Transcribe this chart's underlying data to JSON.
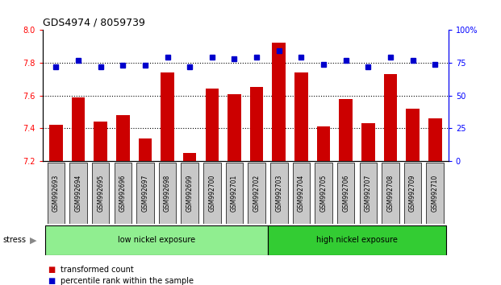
{
  "title": "GDS4974 / 8059739",
  "categories": [
    "GSM992693",
    "GSM992694",
    "GSM992695",
    "GSM992696",
    "GSM992697",
    "GSM992698",
    "GSM992699",
    "GSM992700",
    "GSM992701",
    "GSM992702",
    "GSM992703",
    "GSM992704",
    "GSM992705",
    "GSM992706",
    "GSM992707",
    "GSM992708",
    "GSM992709",
    "GSM992710"
  ],
  "bar_values": [
    7.42,
    7.59,
    7.44,
    7.48,
    7.34,
    7.74,
    7.25,
    7.64,
    7.61,
    7.65,
    7.92,
    7.74,
    7.41,
    7.58,
    7.43,
    7.73,
    7.52,
    7.46
  ],
  "dot_values": [
    72,
    77,
    72,
    73,
    73,
    79,
    72,
    79,
    78,
    79,
    84,
    79,
    74,
    77,
    72,
    79,
    77,
    74
  ],
  "ylim_left": [
    7.2,
    8.0
  ],
  "ylim_right": [
    0,
    100
  ],
  "yticks_left": [
    7.2,
    7.4,
    7.6,
    7.8,
    8.0
  ],
  "yticks_right": [
    0,
    25,
    50,
    75,
    100
  ],
  "bar_color": "#cc0000",
  "dot_color": "#0000cc",
  "group1_label": "low nickel exposure",
  "group2_label": "high nickel exposure",
  "group1_count": 10,
  "group2_count": 8,
  "group1_color": "#90ee90",
  "group2_color": "#33cc33",
  "stress_label": "stress",
  "legend_bar": "transformed count",
  "legend_dot": "percentile rank within the sample",
  "dotgrid_values": [
    7.4,
    7.6,
    7.8
  ]
}
